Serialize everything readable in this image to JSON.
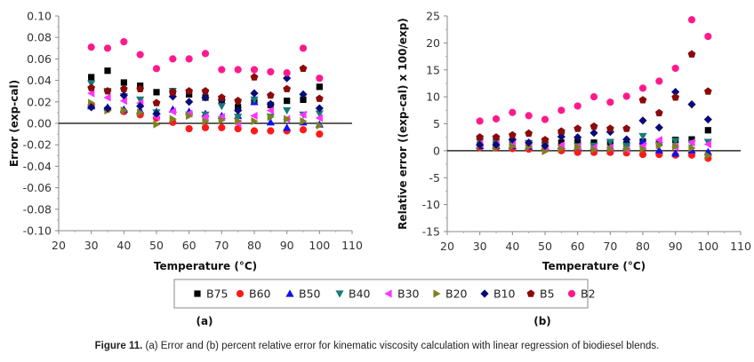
{
  "figure": {
    "caption_label": "Figure 11.",
    "caption_text": " (a) Error and (b) percent relative error for kinematic viscosity calculation with linear regression of biodiesel blends.",
    "panel_a_label": "(a)",
    "panel_b_label": "(b)"
  },
  "legend": {
    "position": "bottom-center",
    "entries": [
      {
        "name": "B75",
        "marker": "square",
        "color": "#000000"
      },
      {
        "name": "B60",
        "marker": "circle",
        "color": "#ff1a1a"
      },
      {
        "name": "B50",
        "marker": "triangle-up",
        "color": "#1010ee"
      },
      {
        "name": "B40",
        "marker": "triangle-down",
        "color": "#1a7a7a"
      },
      {
        "name": "B30",
        "marker": "triangle-left",
        "color": "#ff33ff"
      },
      {
        "name": "B20",
        "marker": "triangle-right",
        "color": "#808020"
      },
      {
        "name": "B10",
        "marker": "diamond",
        "color": "#0a0a78"
      },
      {
        "name": "B5",
        "marker": "pentagon",
        "color": "#8b0a0a"
      },
      {
        "name": "B2",
        "marker": "circle",
        "color": "#ff1a8c"
      }
    ]
  },
  "chart_data": [
    {
      "id": "a",
      "type": "scatter",
      "title": "",
      "xlabel": "Temperature (°C)",
      "ylabel": "Error (exp-cal)",
      "xlim": [
        20,
        110
      ],
      "ylim": [
        -0.1,
        0.1
      ],
      "xticks": [
        20,
        30,
        40,
        50,
        60,
        70,
        80,
        90,
        100,
        110
      ],
      "yticks": [
        -0.1,
        -0.08,
        -0.06,
        -0.04,
        -0.02,
        0.0,
        0.02,
        0.04,
        0.06,
        0.08,
        0.1
      ],
      "ytick_labels": [
        "-0.10",
        "-0.08",
        "-0.06",
        "-0.04",
        "-0.02",
        "0.00",
        "0.02",
        "0.04",
        "0.06",
        "0.08",
        "0.10"
      ],
      "xtick_labels": [
        "20",
        "30",
        "40",
        "50",
        "60",
        "70",
        "80",
        "90",
        "100",
        "110"
      ],
      "grid": false,
      "zero_line": true,
      "x": [
        30,
        35,
        40,
        45,
        50,
        55,
        60,
        65,
        70,
        75,
        80,
        85,
        90,
        95,
        100
      ],
      "series": [
        {
          "name": "B75",
          "values": [
            0.043,
            0.049,
            0.038,
            0.035,
            0.029,
            0.03,
            0.027,
            0.024,
            0.021,
            0.015,
            0.02,
            0.017,
            0.021,
            0.022,
            0.034
          ]
        },
        {
          "name": "B60",
          "values": [
            0.017,
            0.013,
            0.011,
            0.008,
            0.005,
            0.001,
            -0.005,
            -0.004,
            -0.004,
            -0.005,
            -0.007,
            -0.007,
            -0.007,
            -0.006,
            -0.01
          ]
        },
        {
          "name": "B50",
          "values": [
            0.016,
            0.015,
            0.013,
            0.012,
            0.011,
            0.013,
            0.011,
            0.009,
            0.007,
            0.007,
            0.02,
            0.001,
            -0.004,
            0.001,
            -0.001
          ]
        },
        {
          "name": "B40",
          "values": [
            0.037,
            0.03,
            0.025,
            0.022,
            0.01,
            0.03,
            0.008,
            0.008,
            0.016,
            0.006,
            0.022,
            0.006,
            0.012,
            0.008,
            0.009
          ]
        },
        {
          "name": "B30",
          "values": [
            0.028,
            0.024,
            0.021,
            0.019,
            0.006,
            0.011,
            0.009,
            0.006,
            0.006,
            0.0,
            0.007,
            0.012,
            0.004,
            0.008,
            0.005
          ]
        },
        {
          "name": "B20",
          "values": [
            0.019,
            0.012,
            0.012,
            0.01,
            -0.001,
            0.004,
            0.007,
            0.002,
            0.003,
            0.002,
            0.002,
            0.006,
            0.004,
            0.002,
            -0.002
          ]
        },
        {
          "name": "B10",
          "values": [
            0.015,
            0.014,
            0.026,
            0.016,
            0.009,
            0.025,
            0.02,
            0.024,
            0.022,
            0.012,
            0.028,
            0.018,
            0.042,
            0.027,
            0.014
          ]
        },
        {
          "name": "B5",
          "values": [
            0.033,
            0.03,
            0.032,
            0.032,
            0.019,
            0.029,
            0.03,
            0.03,
            0.024,
            0.021,
            0.043,
            0.026,
            0.032,
            0.051,
            0.023
          ]
        },
        {
          "name": "B2",
          "values": [
            0.071,
            0.07,
            0.076,
            0.064,
            0.051,
            0.06,
            0.06,
            0.065,
            0.05,
            0.05,
            0.05,
            0.048,
            0.047,
            0.07,
            0.042
          ]
        }
      ]
    },
    {
      "id": "b",
      "type": "scatter",
      "title": "",
      "xlabel": "Temperature (°C)",
      "ylabel": "Relative error ((exp-cal) x 100/exp)",
      "xlim": [
        20,
        110
      ],
      "ylim": [
        -15,
        25
      ],
      "xticks": [
        20,
        30,
        40,
        50,
        60,
        70,
        80,
        90,
        100,
        110
      ],
      "yticks": [
        -15,
        -10,
        -5,
        0,
        5,
        10,
        15,
        20,
        25
      ],
      "ytick_labels": [
        "-15",
        "-10",
        "-5",
        "0",
        "5",
        "10",
        "15",
        "20",
        "25"
      ],
      "xtick_labels": [
        "20",
        "30",
        "40",
        "50",
        "60",
        "70",
        "80",
        "90",
        "100",
        "110"
      ],
      "grid": false,
      "zero_line": true,
      "x": [
        30,
        35,
        40,
        45,
        50,
        55,
        60,
        65,
        70,
        75,
        80,
        85,
        90,
        95,
        100
      ],
      "series": [
        {
          "name": "B75",
          "values": [
            1.1,
            1.2,
            1.2,
            1.3,
            1.3,
            1.5,
            1.6,
            1.5,
            1.5,
            1.2,
            1.7,
            1.4,
            2.0,
            2.1,
            3.8
          ]
        },
        {
          "name": "B60",
          "values": [
            0.6,
            0.6,
            0.4,
            0.3,
            0.2,
            0.0,
            -0.3,
            -0.3,
            -0.3,
            -0.4,
            -0.7,
            -0.7,
            -0.8,
            -0.8,
            -1.4
          ]
        },
        {
          "name": "B50",
          "values": [
            0.9,
            0.9,
            0.9,
            0.8,
            0.8,
            0.9,
            0.8,
            0.7,
            0.6,
            0.8,
            1.8,
            0.1,
            -0.5,
            0.1,
            -0.2
          ]
        },
        {
          "name": "B40",
          "values": [
            1.7,
            1.6,
            1.5,
            1.4,
            1.0,
            2.8,
            0.8,
            0.9,
            1.6,
            0.9,
            2.7,
            1.0,
            1.8,
            1.4,
            1.6
          ]
        },
        {
          "name": "B30",
          "values": [
            1.3,
            1.2,
            1.2,
            1.1,
            0.5,
            1.0,
            0.8,
            0.6,
            0.6,
            0.2,
            0.9,
            2.0,
            0.7,
            1.5,
            1.2
          ]
        },
        {
          "name": "B20",
          "values": [
            0.9,
            0.6,
            0.8,
            0.7,
            -0.1,
            0.4,
            0.7,
            0.2,
            0.4,
            0.3,
            0.3,
            1.0,
            0.8,
            0.5,
            -0.9
          ]
        },
        {
          "name": "B10",
          "values": [
            1.1,
            1.1,
            2.1,
            1.5,
            0.9,
            2.6,
            2.5,
            3.3,
            3.5,
            2.1,
            5.6,
            4.3,
            10.9,
            8.6,
            5.8
          ]
        },
        {
          "name": "B5",
          "values": [
            2.5,
            2.5,
            2.9,
            3.2,
            2.0,
            3.6,
            4.1,
            4.5,
            4.1,
            4.1,
            9.4,
            7.0,
            9.9,
            17.9,
            11.0
          ]
        },
        {
          "name": "B2",
          "values": [
            5.5,
            5.9,
            7.1,
            6.5,
            5.8,
            7.5,
            8.3,
            10.0,
            9.0,
            10.1,
            11.6,
            12.9,
            15.3,
            24.3,
            21.2
          ]
        }
      ]
    }
  ]
}
